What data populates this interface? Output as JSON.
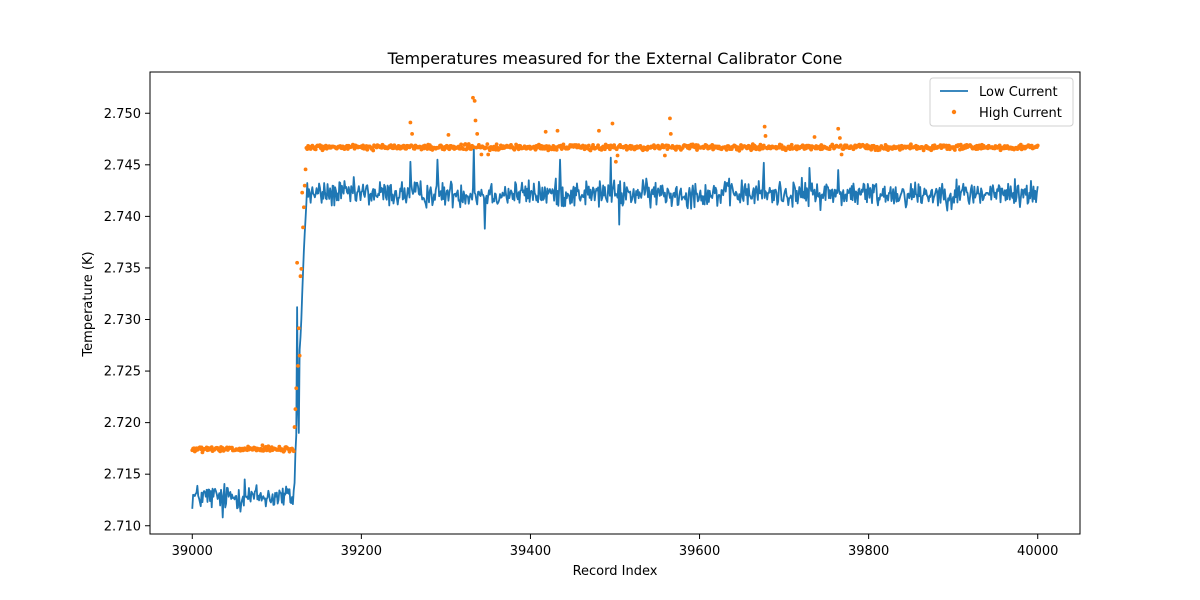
{
  "chart_data": {
    "type": "line+scatter",
    "title": "Temperatures measured for the External Calibrator Cone",
    "xlabel": "Record Index",
    "ylabel": "Temperature (K)",
    "xlim": [
      38950,
      40050
    ],
    "ylim": [
      2.7092,
      2.754
    ],
    "xticks": [
      39000,
      39200,
      39400,
      39600,
      39800,
      40000
    ],
    "xtick_labels": [
      "39000",
      "39200",
      "39400",
      "39600",
      "39800",
      "40000"
    ],
    "yticks": [
      2.71,
      2.715,
      2.72,
      2.725,
      2.73,
      2.735,
      2.74,
      2.745,
      2.75
    ],
    "ytick_labels": [
      "2.710",
      "2.715",
      "2.720",
      "2.725",
      "2.730",
      "2.735",
      "2.740",
      "2.745",
      "2.750"
    ],
    "grid": false,
    "legend": {
      "placement": "top-right",
      "show": true
    },
    "x_range": [
      39000,
      40000
    ],
    "transition": {
      "start": 39120,
      "end": 39135
    },
    "series": [
      {
        "name": "Low Current",
        "kind": "line",
        "color": "#1f77b4",
        "baseline_before": 2.7128,
        "baseline_after": 2.7422,
        "noise": 0.0009,
        "spikes": [
          {
            "x": 39062,
            "y": 2.7145
          },
          {
            "x": 39036,
            "y": 2.7108
          },
          {
            "x": 39124,
            "y": 2.7312
          },
          {
            "x": 39126,
            "y": 2.719
          },
          {
            "x": 39258,
            "y": 2.7453
          },
          {
            "x": 39290,
            "y": 2.7455
          },
          {
            "x": 39333,
            "y": 2.7467
          },
          {
            "x": 39346,
            "y": 2.7388
          },
          {
            "x": 39435,
            "y": 2.7455
          },
          {
            "x": 39495,
            "y": 2.7457
          },
          {
            "x": 39505,
            "y": 2.7392
          },
          {
            "x": 39676,
            "y": 2.7452
          },
          {
            "x": 39730,
            "y": 2.7447
          },
          {
            "x": 39764,
            "y": 2.7445
          }
        ]
      },
      {
        "name": "High Current",
        "kind": "scatter",
        "color": "#ff7f0e",
        "baseline_before": 2.7174,
        "baseline_after": 2.7467,
        "noise": 0.00018,
        "spikes": [
          {
            "x": 39083,
            "y": 2.7178
          },
          {
            "x": 39124,
            "y": 2.7355
          },
          {
            "x": 39125,
            "y": 2.7255
          },
          {
            "x": 39127,
            "y": 2.7265
          },
          {
            "x": 39128,
            "y": 2.7342
          },
          {
            "x": 39130,
            "y": 2.7423
          },
          {
            "x": 39258,
            "y": 2.7491
          },
          {
            "x": 39260,
            "y": 2.748
          },
          {
            "x": 39303,
            "y": 2.7479
          },
          {
            "x": 39332,
            "y": 2.7515
          },
          {
            "x": 39334,
            "y": 2.7512
          },
          {
            "x": 39335,
            "y": 2.7493
          },
          {
            "x": 39337,
            "y": 2.748
          },
          {
            "x": 39342,
            "y": 2.746
          },
          {
            "x": 39350,
            "y": 2.746
          },
          {
            "x": 39418,
            "y": 2.7482
          },
          {
            "x": 39432,
            "y": 2.7483
          },
          {
            "x": 39481,
            "y": 2.7483
          },
          {
            "x": 39497,
            "y": 2.749
          },
          {
            "x": 39501,
            "y": 2.7453
          },
          {
            "x": 39503,
            "y": 2.7459
          },
          {
            "x": 39565,
            "y": 2.7495
          },
          {
            "x": 39566,
            "y": 2.748
          },
          {
            "x": 39559,
            "y": 2.7459
          },
          {
            "x": 39677,
            "y": 2.7487
          },
          {
            "x": 39678,
            "y": 2.7478
          },
          {
            "x": 39736,
            "y": 2.7477
          },
          {
            "x": 39764,
            "y": 2.7485
          },
          {
            "x": 39766,
            "y": 2.7476
          },
          {
            "x": 39768,
            "y": 2.746
          }
        ]
      }
    ]
  }
}
